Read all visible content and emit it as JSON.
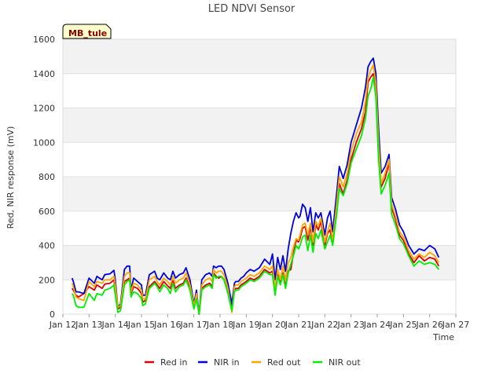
{
  "chart_data": {
    "type": "line",
    "title": "LED NDVI Sensor",
    "xlabel": "Time",
    "ylabel": "Red, NIR response (mV)",
    "site_tag": "MB_tule",
    "ylim": [
      0,
      1600
    ],
    "yticks": [
      0,
      200,
      400,
      600,
      800,
      1000,
      1200,
      1400,
      1600
    ],
    "xlim": [
      12,
      27
    ],
    "xticks": [
      12,
      13,
      14,
      15,
      16,
      17,
      18,
      19,
      20,
      21,
      22,
      23,
      24,
      25,
      26,
      27
    ],
    "xtick_labels": [
      "Jan 12",
      "Jan 13",
      "Jan 14",
      "Jan 15",
      "Jan 16",
      "Jan 17",
      "Jan 18",
      "Jan 19",
      "Jan 20",
      "Jan 21",
      "Jan 22",
      "Jan 23",
      "Jan 24",
      "Jan 25",
      "Jan 26",
      "Jan 27"
    ],
    "grid": true,
    "legend_position": "bottom",
    "series": [
      {
        "name": "Red in",
        "color": "#dd0000",
        "x": [
          12.35,
          12.4,
          12.5,
          12.6,
          12.8,
          13.0,
          13.2,
          13.3,
          13.5,
          13.6,
          13.8,
          13.95,
          14.0,
          14.1,
          14.2,
          14.35,
          14.45,
          14.55,
          14.6,
          14.7,
          14.85,
          15.0,
          15.05,
          15.15,
          15.3,
          15.5,
          15.6,
          15.7,
          15.85,
          16.0,
          16.1,
          16.2,
          16.3,
          16.45,
          16.6,
          16.7,
          16.85,
          17.0,
          17.1,
          17.2,
          17.3,
          17.45,
          17.6,
          17.7,
          17.75,
          17.85,
          17.95,
          18.05,
          18.15,
          18.3,
          18.45,
          18.55,
          18.6,
          18.7,
          18.8,
          18.9,
          19.0,
          19.15,
          19.3,
          19.5,
          19.7,
          19.9,
          20.0,
          20.1,
          20.2,
          20.3,
          20.4,
          20.5,
          20.6,
          20.7,
          20.8,
          20.9,
          21.0,
          21.05,
          21.15,
          21.25,
          21.35,
          21.45,
          21.55,
          21.65,
          21.75,
          21.85,
          22.0,
          22.1,
          22.2,
          22.3,
          22.45,
          22.55,
          22.7,
          22.85,
          23.0,
          23.2,
          23.4,
          23.55,
          23.65,
          23.75,
          23.85,
          23.95,
          24.05,
          24.15,
          24.3,
          24.45,
          24.55,
          24.7,
          24.85,
          25.0,
          25.2,
          25.4,
          25.6,
          25.8,
          26.0,
          26.2,
          26.35
        ],
        "values": [
          150,
          140,
          110,
          100,
          120,
          160,
          140,
          170,
          150,
          175,
          180,
          200,
          140,
          30,
          40,
          190,
          200,
          210,
          120,
          160,
          150,
          120,
          70,
          80,
          160,
          190,
          170,
          150,
          190,
          165,
          150,
          195,
          150,
          170,
          180,
          210,
          150,
          40,
          100,
          0,
          150,
          170,
          180,
          160,
          240,
          220,
          210,
          220,
          200,
          130,
          40,
          140,
          150,
          150,
          170,
          180,
          190,
          210,
          200,
          220,
          260,
          240,
          250,
          120,
          230,
          180,
          240,
          160,
          250,
          260,
          350,
          430,
          420,
          440,
          500,
          510,
          430,
          510,
          400,
          520,
          490,
          540,
          400,
          470,
          490,
          410,
          600,
          760,
          700,
          780,
          900,
          1000,
          1080,
          1180,
          1350,
          1380,
          1400,
          1300,
          950,
          740,
          790,
          880,
          620,
          550,
          460,
          430,
          350,
          300,
          340,
          310,
          330,
          320,
          280
        ]
      },
      {
        "name": "NIR in",
        "color": "#0000dd",
        "x": [
          12.35,
          12.4,
          12.5,
          12.6,
          12.8,
          13.0,
          13.2,
          13.3,
          13.5,
          13.6,
          13.8,
          13.95,
          14.0,
          14.1,
          14.2,
          14.35,
          14.45,
          14.55,
          14.6,
          14.7,
          14.85,
          15.0,
          15.05,
          15.15,
          15.3,
          15.5,
          15.6,
          15.7,
          15.85,
          16.0,
          16.1,
          16.2,
          16.3,
          16.45,
          16.6,
          16.7,
          16.85,
          17.0,
          17.1,
          17.2,
          17.3,
          17.45,
          17.6,
          17.7,
          17.75,
          17.85,
          17.95,
          18.05,
          18.15,
          18.3,
          18.45,
          18.55,
          18.6,
          18.7,
          18.8,
          18.9,
          19.0,
          19.15,
          19.3,
          19.5,
          19.7,
          19.9,
          20.0,
          20.1,
          20.2,
          20.3,
          20.4,
          20.5,
          20.6,
          20.7,
          20.8,
          20.9,
          21.0,
          21.05,
          21.15,
          21.25,
          21.35,
          21.45,
          21.55,
          21.65,
          21.75,
          21.85,
          22.0,
          22.1,
          22.2,
          22.3,
          22.45,
          22.55,
          22.7,
          22.85,
          23.0,
          23.2,
          23.4,
          23.55,
          23.65,
          23.75,
          23.85,
          23.95,
          24.05,
          24.15,
          24.3,
          24.45,
          24.55,
          24.7,
          24.85,
          25.0,
          25.2,
          25.4,
          25.6,
          25.8,
          26.0,
          26.2,
          26.35
        ],
        "values": [
          210,
          190,
          130,
          130,
          120,
          210,
          180,
          220,
          200,
          230,
          235,
          255,
          200,
          40,
          60,
          260,
          280,
          280,
          140,
          210,
          190,
          170,
          110,
          110,
          230,
          250,
          210,
          200,
          240,
          210,
          200,
          250,
          210,
          230,
          240,
          270,
          200,
          60,
          140,
          0,
          200,
          230,
          240,
          220,
          280,
          270,
          280,
          280,
          260,
          180,
          60,
          180,
          190,
          190,
          210,
          220,
          240,
          260,
          250,
          270,
          320,
          290,
          350,
          200,
          330,
          260,
          340,
          250,
          380,
          470,
          540,
          590,
          560,
          570,
          640,
          620,
          540,
          620,
          480,
          590,
          560,
          590,
          460,
          560,
          600,
          480,
          700,
          860,
          790,
          870,
          1000,
          1100,
          1200,
          1320,
          1440,
          1470,
          1490,
          1400,
          1080,
          820,
          860,
          930,
          680,
          610,
          520,
          480,
          400,
          350,
          380,
          370,
          400,
          380,
          330
        ]
      },
      {
        "name": "Red out",
        "color": "#ffa500",
        "x": [
          12.35,
          12.4,
          12.5,
          12.6,
          12.8,
          13.0,
          13.2,
          13.3,
          13.5,
          13.6,
          13.8,
          13.95,
          14.0,
          14.1,
          14.2,
          14.35,
          14.45,
          14.55,
          14.6,
          14.7,
          14.85,
          15.0,
          15.05,
          15.15,
          15.3,
          15.5,
          15.6,
          15.7,
          15.85,
          16.0,
          16.1,
          16.2,
          16.3,
          16.45,
          16.6,
          16.7,
          16.85,
          17.0,
          17.1,
          17.2,
          17.3,
          17.45,
          17.6,
          17.7,
          17.75,
          17.85,
          17.95,
          18.05,
          18.15,
          18.3,
          18.45,
          18.55,
          18.6,
          18.7,
          18.8,
          18.9,
          19.0,
          19.15,
          19.3,
          19.5,
          19.7,
          19.9,
          20.0,
          20.1,
          20.2,
          20.3,
          20.4,
          20.5,
          20.6,
          20.7,
          20.8,
          20.9,
          21.0,
          21.05,
          21.15,
          21.25,
          21.35,
          21.45,
          21.55,
          21.65,
          21.75,
          21.85,
          22.0,
          22.1,
          22.2,
          22.3,
          22.45,
          22.55,
          22.7,
          22.85,
          23.0,
          23.2,
          23.4,
          23.55,
          23.65,
          23.75,
          23.85,
          23.95,
          24.05,
          24.15,
          24.3,
          24.45,
          24.55,
          24.7,
          24.85,
          25.0,
          25.2,
          25.4,
          25.6,
          25.8,
          26.0,
          26.2,
          26.35
        ],
        "values": [
          180,
          160,
          100,
          90,
          80,
          190,
          160,
          190,
          180,
          200,
          200,
          220,
          170,
          40,
          50,
          220,
          240,
          240,
          130,
          180,
          170,
          140,
          90,
          90,
          200,
          220,
          190,
          170,
          210,
          190,
          170,
          220,
          180,
          200,
          210,
          240,
          170,
          50,
          120,
          0,
          170,
          200,
          210,
          190,
          260,
          240,
          250,
          250,
          230,
          150,
          10,
          160,
          170,
          170,
          190,
          200,
          210,
          230,
          220,
          240,
          280,
          260,
          280,
          150,
          260,
          200,
          280,
          200,
          300,
          330,
          390,
          440,
          430,
          460,
          520,
          530,
          460,
          530,
          420,
          540,
          510,
          560,
          420,
          480,
          530,
          430,
          640,
          800,
          740,
          820,
          950,
          1050,
          1120,
          1240,
          1380,
          1420,
          1450,
          1340,
          1000,
          760,
          820,
          900,
          640,
          570,
          480,
          450,
          370,
          320,
          350,
          330,
          360,
          340,
          300
        ]
      },
      {
        "name": "NIR out",
        "color": "#00ee00",
        "x": [
          12.35,
          12.4,
          12.5,
          12.6,
          12.8,
          13.0,
          13.2,
          13.3,
          13.5,
          13.6,
          13.8,
          13.95,
          14.0,
          14.1,
          14.2,
          14.35,
          14.45,
          14.55,
          14.6,
          14.7,
          14.85,
          15.0,
          15.05,
          15.15,
          15.3,
          15.5,
          15.6,
          15.7,
          15.85,
          16.0,
          16.1,
          16.2,
          16.3,
          16.45,
          16.6,
          16.7,
          16.85,
          17.0,
          17.1,
          17.2,
          17.3,
          17.45,
          17.6,
          17.7,
          17.75,
          17.85,
          17.95,
          18.05,
          18.15,
          18.3,
          18.45,
          18.55,
          18.6,
          18.7,
          18.8,
          18.9,
          19.0,
          19.15,
          19.3,
          19.5,
          19.7,
          19.9,
          20.0,
          20.1,
          20.2,
          20.3,
          20.4,
          20.5,
          20.6,
          20.7,
          20.8,
          20.9,
          21.0,
          21.05,
          21.15,
          21.25,
          21.35,
          21.45,
          21.55,
          21.65,
          21.75,
          21.85,
          22.0,
          22.1,
          22.2,
          22.3,
          22.45,
          22.55,
          22.7,
          22.85,
          23.0,
          23.2,
          23.4,
          23.55,
          23.65,
          23.75,
          23.85,
          23.95,
          24.05,
          24.15,
          24.3,
          24.45,
          24.55,
          24.7,
          24.85,
          25.0,
          25.2,
          25.4,
          25.6,
          25.8,
          26.0,
          26.2,
          26.35
        ],
        "values": [
          120,
          110,
          50,
          40,
          40,
          120,
          80,
          120,
          110,
          140,
          150,
          170,
          110,
          10,
          20,
          170,
          190,
          200,
          100,
          130,
          120,
          90,
          50,
          60,
          150,
          180,
          160,
          130,
          170,
          150,
          120,
          180,
          130,
          160,
          170,
          200,
          140,
          30,
          90,
          0,
          140,
          160,
          170,
          150,
          230,
          210,
          220,
          220,
          200,
          120,
          20,
          130,
          140,
          140,
          160,
          170,
          180,
          200,
          190,
          210,
          250,
          230,
          230,
          110,
          220,
          170,
          230,
          150,
          240,
          290,
          340,
          400,
          380,
          400,
          450,
          460,
          370,
          460,
          360,
          470,
          440,
          490,
          380,
          420,
          460,
          400,
          580,
          730,
          690,
          760,
          880,
          960,
          1040,
          1140,
          1270,
          1310,
          1380,
          1260,
          900,
          700,
          750,
          820,
          580,
          520,
          440,
          410,
          340,
          280,
          310,
          290,
          300,
          290,
          260
        ]
      }
    ]
  }
}
